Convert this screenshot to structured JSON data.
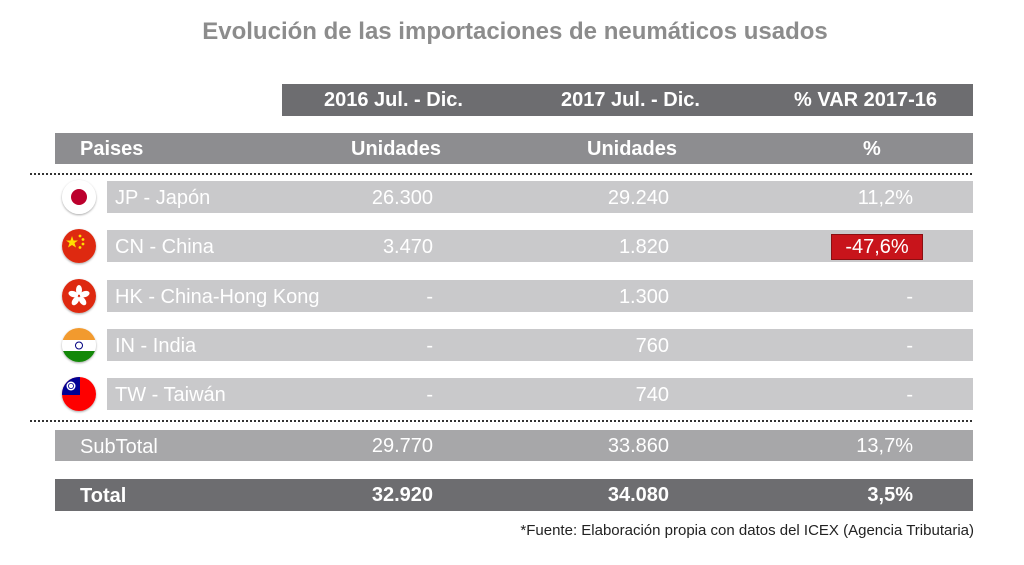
{
  "title": "Evolución de las importaciones de neumáticos usados",
  "periods": [
    "2016 Jul. - Dic.",
    "2017 Jul. - Dic.",
    "% VAR 2017-16"
  ],
  "headers": {
    "country": "Paises",
    "units_2016": "Unidades",
    "units_2017": "Unidades",
    "pct": "%"
  },
  "rows": [
    {
      "country": "JP - Japón",
      "flag_icon": "japan-flag-icon",
      "units_2016": "26.300",
      "units_2017": "29.240",
      "pct": "11,2%"
    },
    {
      "country": "CN - China",
      "flag_icon": "china-flag-icon",
      "units_2016": "3.470",
      "units_2017": "1.820",
      "pct": "-47,6%",
      "pct_color": "#c8141b"
    },
    {
      "country": "HK - China-Hong Kong",
      "flag_icon": "hong-kong-flag-icon",
      "units_2016": "-",
      "units_2017": "1.300",
      "pct": "-"
    },
    {
      "country": "IN - India",
      "flag_icon": "india-flag-icon",
      "units_2016": "-",
      "units_2017": "760",
      "pct": "-"
    },
    {
      "country": "TW - Taiwán",
      "flag_icon": "taiwan-flag-icon",
      "units_2016": "-",
      "units_2017": "740",
      "pct": "-"
    }
  ],
  "subtotal": {
    "label": "SubTotal",
    "units_2016": "29.770",
    "units_2017": "33.860",
    "pct": "13,7%"
  },
  "total": {
    "label": "Total",
    "units_2016": "32.920",
    "units_2017": "34.080",
    "pct": "3,5%"
  },
  "source": "*Fuente: Elaboración propia con datos del ICEX (Agencia Tributaria)",
  "colors": {
    "dark_bar": "#6d6d70",
    "header_bar": "#8d8d90",
    "row_bg": "#c9c9cb",
    "subtotal_bg": "#a7a7a9",
    "title": "#8c8c8c",
    "negative": "#c8141b"
  }
}
